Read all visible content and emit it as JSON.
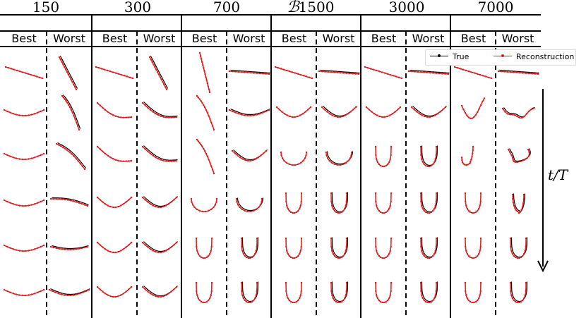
{
  "figure": {
    "symbol": "ℬ",
    "budgets": [
      "150",
      "300",
      "700",
      "1500",
      "3000",
      "7000"
    ],
    "sub_labels": [
      "Best",
      "Worst"
    ],
    "time_label": "t/T",
    "legend": {
      "true_label": "True",
      "reconstruction_label": "Reconstruction"
    },
    "colors": {
      "true": "#000000",
      "reconstruction": "#e41a1c"
    },
    "rows": 6,
    "panel_shapes": {
      "150": {
        "best": [
          "line-down",
          "arc-shallow",
          "arc-shallow",
          "arc-shallow",
          "arc-shallow",
          "arc-shallow"
        ],
        "worst": [
          "line-steep",
          "curve-steep",
          "curve-diag",
          "curve-flat",
          "arc-flat",
          "arc-shallow"
        ]
      },
      "300": {
        "best": [
          "line-down",
          "curve",
          "curve",
          "arc",
          "arc",
          "arc"
        ],
        "worst": [
          "line-steep",
          "curve",
          "curve",
          "arc",
          "arc",
          "arc"
        ]
      },
      "700": {
        "best": [
          "line-vertical",
          "curve-steep",
          "curve-steep",
          "arc-deep",
          "u",
          "u"
        ],
        "worst": [
          "line-flat",
          "arc-shallow",
          "arc",
          "arc-deep",
          "u",
          "u"
        ]
      },
      "1500": {
        "best": [
          "line-down",
          "arc",
          "arc-deep",
          "u",
          "u",
          "u"
        ],
        "worst": [
          "line-flat",
          "arc",
          "arc-deep",
          "u",
          "u",
          "u"
        ]
      },
      "3000": {
        "best": [
          "line-down",
          "arc",
          "u",
          "u",
          "u",
          "u"
        ],
        "worst": [
          "line-flat",
          "arc",
          "u",
          "u",
          "u",
          "u"
        ]
      },
      "7000": {
        "best": [
          "line-down",
          "hook",
          "j",
          "u",
          "u",
          "u"
        ],
        "worst": [
          "line-flat",
          "arc-wavy",
          "twisted",
          "u-narrow",
          "u",
          "u"
        ]
      }
    }
  }
}
